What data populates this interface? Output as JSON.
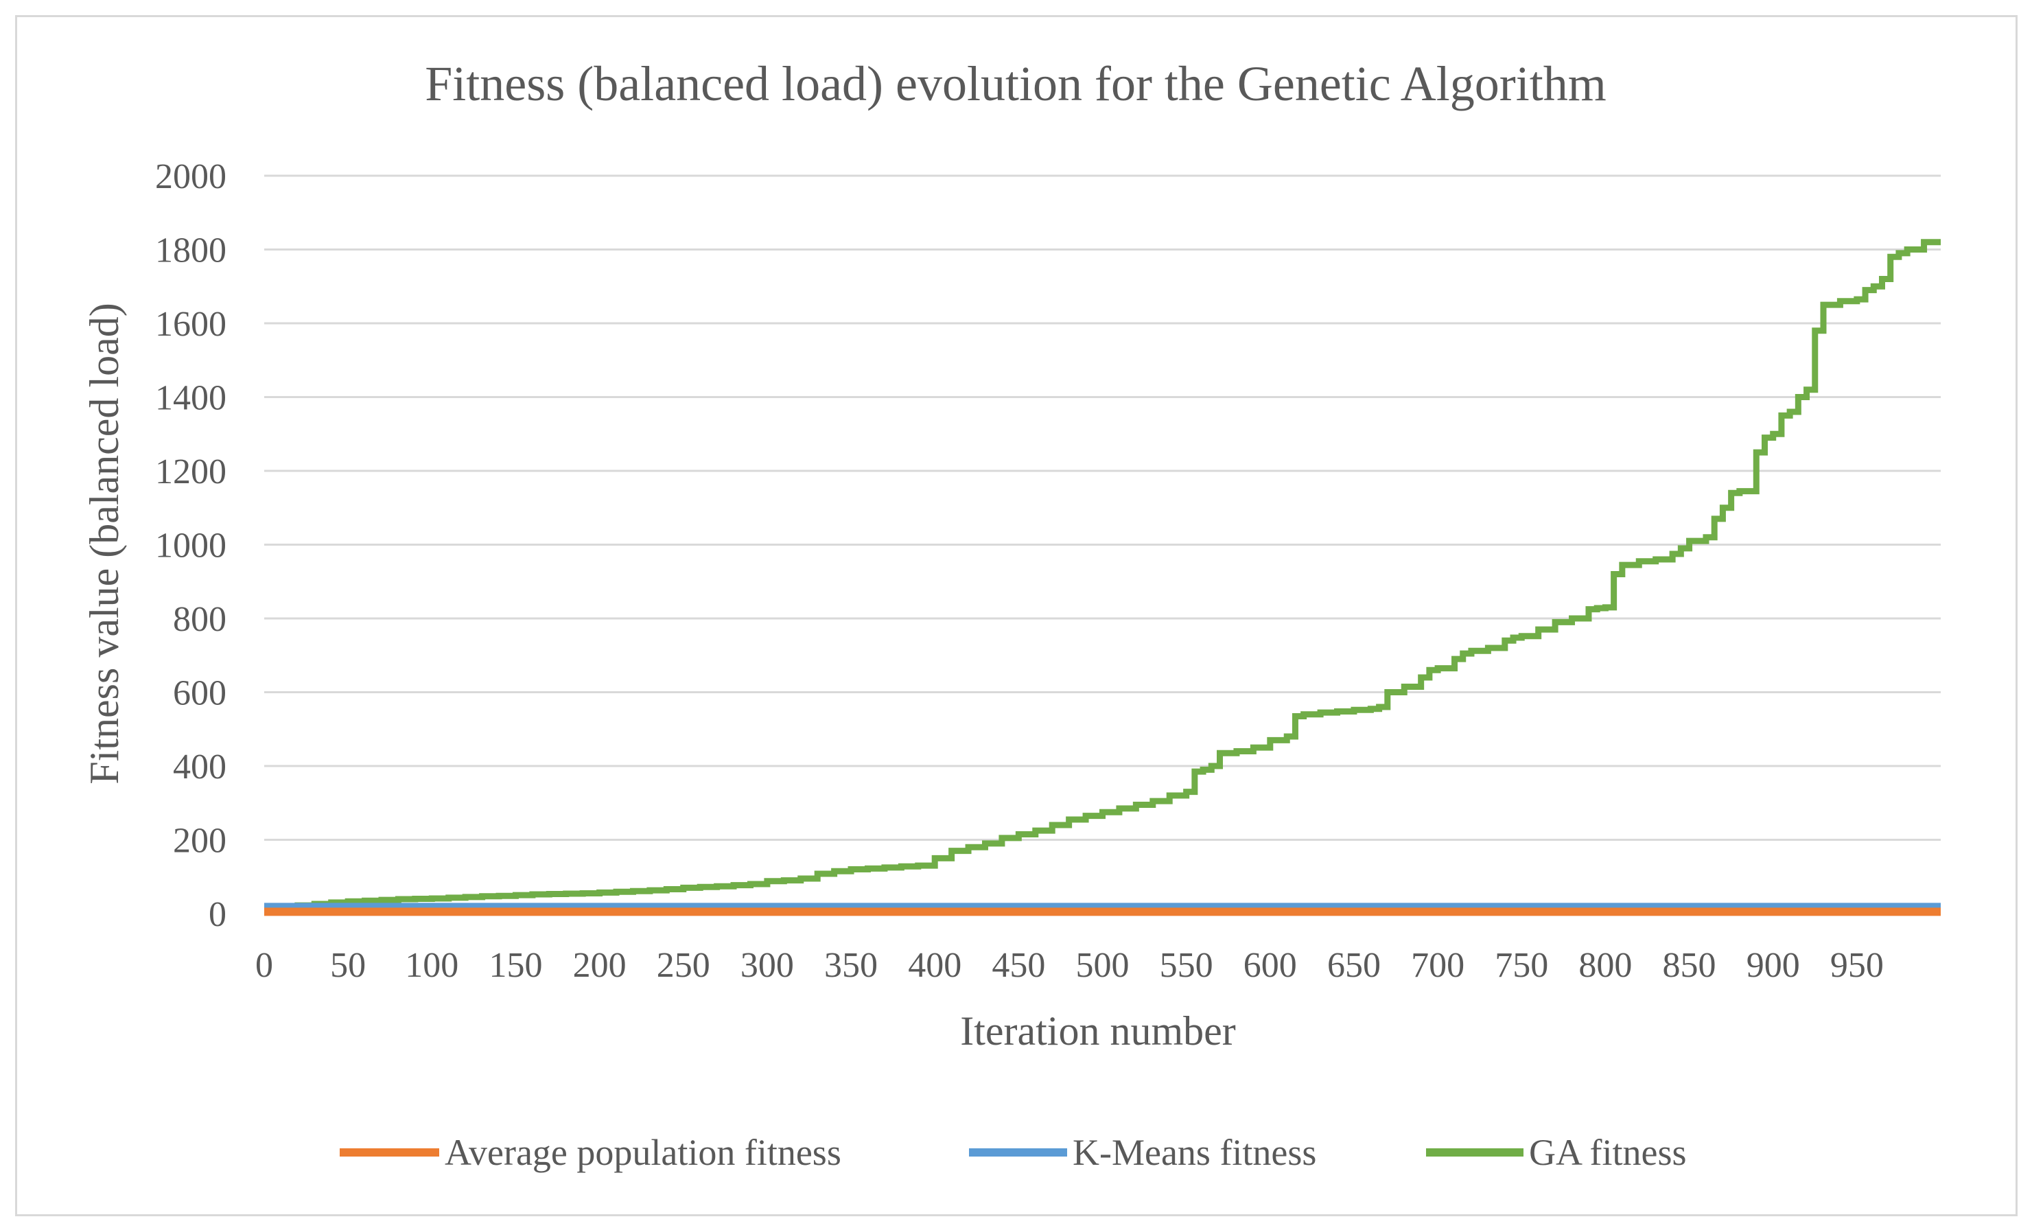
{
  "chart_data": {
    "type": "line",
    "title": "Fitness (balanced load) evolution for the Genetic Algorithm",
    "xlabel": "Iteration number",
    "ylabel": "Fitness value (balanced load)",
    "xlim": [
      0,
      1000
    ],
    "ylim": [
      0,
      2000
    ],
    "x_ticks": [
      0,
      50,
      100,
      150,
      200,
      250,
      300,
      350,
      400,
      450,
      500,
      550,
      600,
      650,
      700,
      750,
      800,
      850,
      900,
      950
    ],
    "y_ticks": [
      0,
      200,
      400,
      600,
      800,
      1000,
      1200,
      1400,
      1600,
      1800,
      2000
    ],
    "grid": true,
    "legend_position": "bottom",
    "series": [
      {
        "name": "Average population fitness",
        "color": "#ED7D31",
        "x": [
          0,
          1000
        ],
        "y": [
          5,
          5
        ]
      },
      {
        "name": "K-Means fitness",
        "color": "#5B9BD5",
        "x": [
          0,
          1000
        ],
        "y": [
          18,
          18
        ]
      },
      {
        "name": "GA fitness",
        "color": "#70AD47",
        "x": [
          0,
          10,
          20,
          30,
          40,
          50,
          60,
          70,
          80,
          90,
          100,
          110,
          120,
          130,
          140,
          150,
          160,
          170,
          180,
          190,
          200,
          210,
          220,
          230,
          240,
          250,
          260,
          270,
          280,
          290,
          300,
          310,
          320,
          330,
          340,
          350,
          360,
          370,
          380,
          390,
          400,
          410,
          420,
          430,
          440,
          450,
          460,
          470,
          480,
          490,
          500,
          510,
          520,
          530,
          540,
          550,
          555,
          560,
          565,
          570,
          580,
          590,
          600,
          610,
          615,
          620,
          630,
          640,
          650,
          660,
          665,
          670,
          680,
          690,
          695,
          700,
          710,
          715,
          720,
          730,
          740,
          745,
          750,
          760,
          770,
          780,
          790,
          795,
          800,
          805,
          810,
          820,
          830,
          840,
          845,
          850,
          860,
          865,
          870,
          875,
          880,
          890,
          895,
          900,
          905,
          910,
          915,
          920,
          925,
          930,
          940,
          950,
          955,
          960,
          965,
          970,
          975,
          980,
          990,
          1000
        ],
        "y": [
          15,
          18,
          22,
          26,
          30,
          33,
          35,
          37,
          39,
          40,
          41,
          43,
          45,
          47,
          48,
          50,
          52,
          53,
          54,
          55,
          57,
          59,
          61,
          63,
          66,
          70,
          72,
          74,
          77,
          80,
          88,
          90,
          95,
          108,
          115,
          120,
          122,
          125,
          128,
          130,
          150,
          170,
          180,
          190,
          205,
          215,
          225,
          240,
          255,
          265,
          275,
          285,
          295,
          305,
          320,
          330,
          385,
          390,
          400,
          435,
          440,
          450,
          470,
          480,
          535,
          540,
          545,
          548,
          552,
          555,
          560,
          600,
          615,
          640,
          660,
          665,
          690,
          705,
          712,
          720,
          740,
          748,
          752,
          770,
          790,
          800,
          825,
          828,
          830,
          920,
          945,
          955,
          960,
          975,
          990,
          1010,
          1020,
          1070,
          1100,
          1140,
          1145,
          1250,
          1290,
          1300,
          1350,
          1360,
          1400,
          1420,
          1580,
          1650,
          1660,
          1665,
          1690,
          1700,
          1720,
          1780,
          1790,
          1800,
          1820,
          1820
        ]
      }
    ]
  }
}
